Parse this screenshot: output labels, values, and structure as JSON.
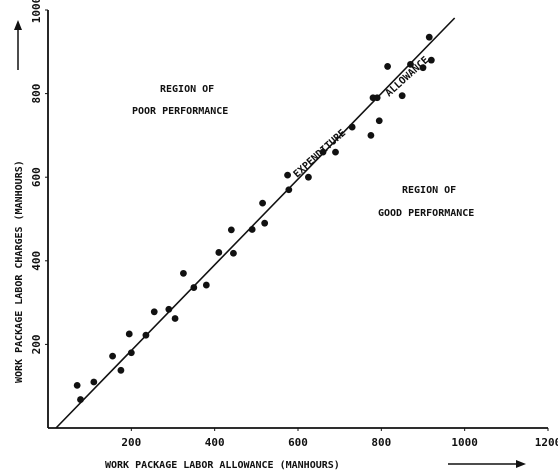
{
  "chart_data": {
    "type": "scatter",
    "title": "",
    "xlabel": "WORK PACKAGE LABOR ALLOWANCE (MANHOURS)",
    "ylabel": "WORK PACKAGE LABOR CHARGES (MANHOURS)",
    "xlim": [
      0,
      1200
    ],
    "ylim": [
      0,
      1000
    ],
    "x_ticks": [
      "200",
      "400",
      "600",
      "800",
      "1000",
      "1200"
    ],
    "y_ticks": [
      "200",
      "400",
      "600",
      "800",
      "1000"
    ],
    "grid": false,
    "reference_line": {
      "label": "EXPENDITURE = ALLOWANCE",
      "x": [
        0,
        1000
      ],
      "y": [
        0,
        1000
      ]
    },
    "annotations": {
      "poor_line1": "REGION OF",
      "poor_line2": "POOR PERFORMANCE",
      "good_line1": "REGION OF",
      "good_line2": "GOOD PERFORMANCE",
      "line_label_left": "EXPENDITURE",
      "line_label_right": "ALLOWANCE"
    },
    "points": [
      {
        "x": 70,
        "y": 102
      },
      {
        "x": 78,
        "y": 68
      },
      {
        "x": 110,
        "y": 110
      },
      {
        "x": 155,
        "y": 172
      },
      {
        "x": 175,
        "y": 138
      },
      {
        "x": 195,
        "y": 225
      },
      {
        "x": 200,
        "y": 180
      },
      {
        "x": 235,
        "y": 222
      },
      {
        "x": 255,
        "y": 278
      },
      {
        "x": 290,
        "y": 284
      },
      {
        "x": 305,
        "y": 262
      },
      {
        "x": 325,
        "y": 370
      },
      {
        "x": 350,
        "y": 336
      },
      {
        "x": 380,
        "y": 342
      },
      {
        "x": 410,
        "y": 420
      },
      {
        "x": 440,
        "y": 474
      },
      {
        "x": 445,
        "y": 418
      },
      {
        "x": 490,
        "y": 475
      },
      {
        "x": 515,
        "y": 538
      },
      {
        "x": 520,
        "y": 490
      },
      {
        "x": 575,
        "y": 605
      },
      {
        "x": 578,
        "y": 570
      },
      {
        "x": 625,
        "y": 600
      },
      {
        "x": 660,
        "y": 660
      },
      {
        "x": 690,
        "y": 660
      },
      {
        "x": 730,
        "y": 720
      },
      {
        "x": 775,
        "y": 700
      },
      {
        "x": 780,
        "y": 790
      },
      {
        "x": 790,
        "y": 790
      },
      {
        "x": 795,
        "y": 735
      },
      {
        "x": 815,
        "y": 865
      },
      {
        "x": 850,
        "y": 795
      },
      {
        "x": 870,
        "y": 870
      },
      {
        "x": 900,
        "y": 862
      },
      {
        "x": 915,
        "y": 935
      },
      {
        "x": 920,
        "y": 880
      }
    ]
  }
}
